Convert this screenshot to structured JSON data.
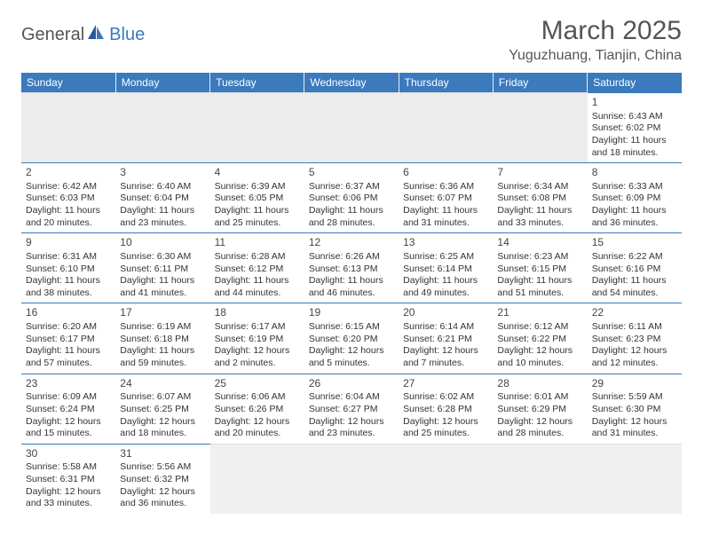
{
  "logo": {
    "text1": "General",
    "text2": "Blue"
  },
  "title": "March 2025",
  "location": "Yuguzhuang, Tianjin, China",
  "colors": {
    "header_bg": "#3a7abd",
    "header_fg": "#ffffff",
    "border": "#3a7abd",
    "text": "#333333"
  },
  "dayNames": [
    "Sunday",
    "Monday",
    "Tuesday",
    "Wednesday",
    "Thursday",
    "Friday",
    "Saturday"
  ],
  "weeks": [
    [
      null,
      null,
      null,
      null,
      null,
      null,
      {
        "d": "1",
        "sr": "Sunrise: 6:43 AM",
        "ss": "Sunset: 6:02 PM",
        "dl": "Daylight: 11 hours and 18 minutes."
      }
    ],
    [
      {
        "d": "2",
        "sr": "Sunrise: 6:42 AM",
        "ss": "Sunset: 6:03 PM",
        "dl": "Daylight: 11 hours and 20 minutes."
      },
      {
        "d": "3",
        "sr": "Sunrise: 6:40 AM",
        "ss": "Sunset: 6:04 PM",
        "dl": "Daylight: 11 hours and 23 minutes."
      },
      {
        "d": "4",
        "sr": "Sunrise: 6:39 AM",
        "ss": "Sunset: 6:05 PM",
        "dl": "Daylight: 11 hours and 25 minutes."
      },
      {
        "d": "5",
        "sr": "Sunrise: 6:37 AM",
        "ss": "Sunset: 6:06 PM",
        "dl": "Daylight: 11 hours and 28 minutes."
      },
      {
        "d": "6",
        "sr": "Sunrise: 6:36 AM",
        "ss": "Sunset: 6:07 PM",
        "dl": "Daylight: 11 hours and 31 minutes."
      },
      {
        "d": "7",
        "sr": "Sunrise: 6:34 AM",
        "ss": "Sunset: 6:08 PM",
        "dl": "Daylight: 11 hours and 33 minutes."
      },
      {
        "d": "8",
        "sr": "Sunrise: 6:33 AM",
        "ss": "Sunset: 6:09 PM",
        "dl": "Daylight: 11 hours and 36 minutes."
      }
    ],
    [
      {
        "d": "9",
        "sr": "Sunrise: 6:31 AM",
        "ss": "Sunset: 6:10 PM",
        "dl": "Daylight: 11 hours and 38 minutes."
      },
      {
        "d": "10",
        "sr": "Sunrise: 6:30 AM",
        "ss": "Sunset: 6:11 PM",
        "dl": "Daylight: 11 hours and 41 minutes."
      },
      {
        "d": "11",
        "sr": "Sunrise: 6:28 AM",
        "ss": "Sunset: 6:12 PM",
        "dl": "Daylight: 11 hours and 44 minutes."
      },
      {
        "d": "12",
        "sr": "Sunrise: 6:26 AM",
        "ss": "Sunset: 6:13 PM",
        "dl": "Daylight: 11 hours and 46 minutes."
      },
      {
        "d": "13",
        "sr": "Sunrise: 6:25 AM",
        "ss": "Sunset: 6:14 PM",
        "dl": "Daylight: 11 hours and 49 minutes."
      },
      {
        "d": "14",
        "sr": "Sunrise: 6:23 AM",
        "ss": "Sunset: 6:15 PM",
        "dl": "Daylight: 11 hours and 51 minutes."
      },
      {
        "d": "15",
        "sr": "Sunrise: 6:22 AM",
        "ss": "Sunset: 6:16 PM",
        "dl": "Daylight: 11 hours and 54 minutes."
      }
    ],
    [
      {
        "d": "16",
        "sr": "Sunrise: 6:20 AM",
        "ss": "Sunset: 6:17 PM",
        "dl": "Daylight: 11 hours and 57 minutes."
      },
      {
        "d": "17",
        "sr": "Sunrise: 6:19 AM",
        "ss": "Sunset: 6:18 PM",
        "dl": "Daylight: 11 hours and 59 minutes."
      },
      {
        "d": "18",
        "sr": "Sunrise: 6:17 AM",
        "ss": "Sunset: 6:19 PM",
        "dl": "Daylight: 12 hours and 2 minutes."
      },
      {
        "d": "19",
        "sr": "Sunrise: 6:15 AM",
        "ss": "Sunset: 6:20 PM",
        "dl": "Daylight: 12 hours and 5 minutes."
      },
      {
        "d": "20",
        "sr": "Sunrise: 6:14 AM",
        "ss": "Sunset: 6:21 PM",
        "dl": "Daylight: 12 hours and 7 minutes."
      },
      {
        "d": "21",
        "sr": "Sunrise: 6:12 AM",
        "ss": "Sunset: 6:22 PM",
        "dl": "Daylight: 12 hours and 10 minutes."
      },
      {
        "d": "22",
        "sr": "Sunrise: 6:11 AM",
        "ss": "Sunset: 6:23 PM",
        "dl": "Daylight: 12 hours and 12 minutes."
      }
    ],
    [
      {
        "d": "23",
        "sr": "Sunrise: 6:09 AM",
        "ss": "Sunset: 6:24 PM",
        "dl": "Daylight: 12 hours and 15 minutes."
      },
      {
        "d": "24",
        "sr": "Sunrise: 6:07 AM",
        "ss": "Sunset: 6:25 PM",
        "dl": "Daylight: 12 hours and 18 minutes."
      },
      {
        "d": "25",
        "sr": "Sunrise: 6:06 AM",
        "ss": "Sunset: 6:26 PM",
        "dl": "Daylight: 12 hours and 20 minutes."
      },
      {
        "d": "26",
        "sr": "Sunrise: 6:04 AM",
        "ss": "Sunset: 6:27 PM",
        "dl": "Daylight: 12 hours and 23 minutes."
      },
      {
        "d": "27",
        "sr": "Sunrise: 6:02 AM",
        "ss": "Sunset: 6:28 PM",
        "dl": "Daylight: 12 hours and 25 minutes."
      },
      {
        "d": "28",
        "sr": "Sunrise: 6:01 AM",
        "ss": "Sunset: 6:29 PM",
        "dl": "Daylight: 12 hours and 28 minutes."
      },
      {
        "d": "29",
        "sr": "Sunrise: 5:59 AM",
        "ss": "Sunset: 6:30 PM",
        "dl": "Daylight: 12 hours and 31 minutes."
      }
    ],
    [
      {
        "d": "30",
        "sr": "Sunrise: 5:58 AM",
        "ss": "Sunset: 6:31 PM",
        "dl": "Daylight: 12 hours and 33 minutes."
      },
      {
        "d": "31",
        "sr": "Sunrise: 5:56 AM",
        "ss": "Sunset: 6:32 PM",
        "dl": "Daylight: 12 hours and 36 minutes."
      },
      null,
      null,
      null,
      null,
      null
    ]
  ]
}
